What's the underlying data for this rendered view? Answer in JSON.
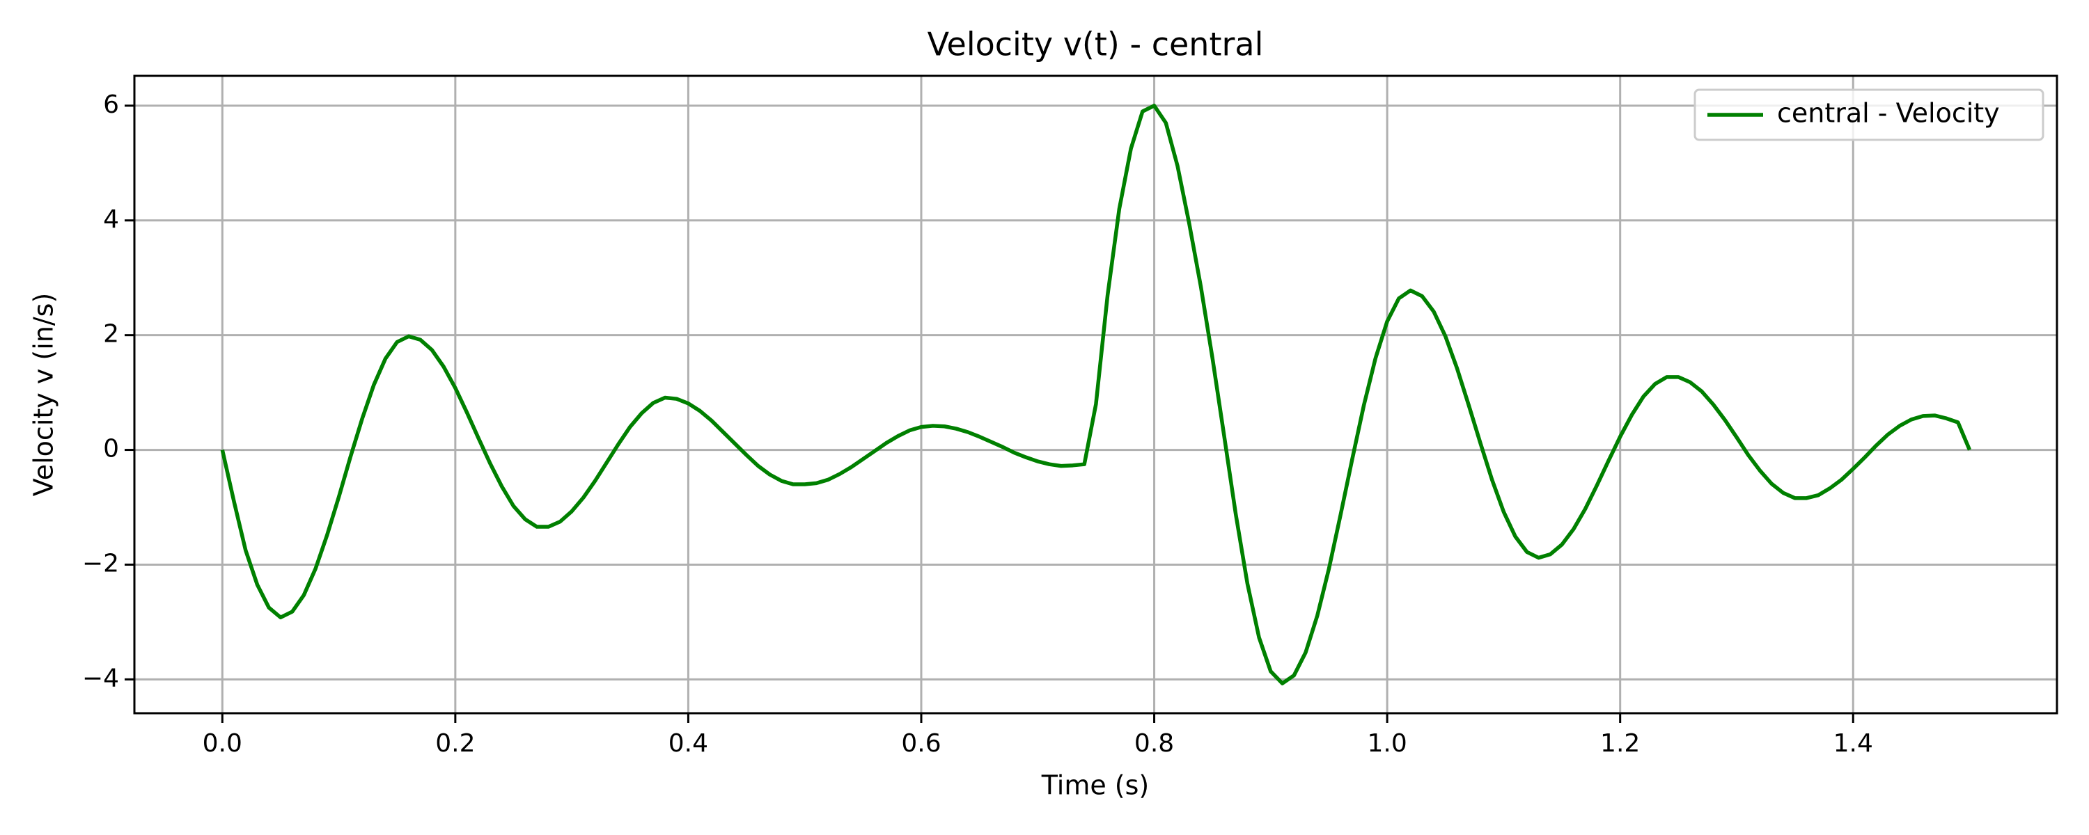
{
  "chart_data": {
    "type": "line",
    "title": "Velocity v(t) - central",
    "x_label": "Time (s)",
    "y_label": "Velocity v (in/s)",
    "x": [
      0,
      0.01,
      0.02,
      0.03,
      0.04,
      0.05,
      0.06,
      0.07,
      0.08,
      0.09,
      0.1,
      0.11,
      0.12,
      0.13,
      0.14,
      0.15,
      0.16,
      0.17,
      0.18,
      0.19,
      0.2,
      0.21,
      0.22,
      0.23,
      0.24,
      0.25,
      0.26,
      0.27,
      0.28,
      0.29,
      0.3,
      0.31,
      0.32,
      0.33,
      0.34,
      0.35,
      0.36,
      0.37,
      0.38,
      0.39,
      0.4,
      0.41,
      0.42,
      0.43,
      0.44,
      0.45,
      0.46,
      0.47,
      0.48,
      0.49,
      0.5,
      0.51,
      0.52,
      0.53,
      0.54,
      0.55,
      0.56,
      0.57,
      0.58,
      0.59,
      0.6,
      0.61,
      0.62,
      0.63,
      0.64,
      0.65,
      0.66,
      0.67,
      0.68,
      0.69,
      0.7,
      0.71,
      0.72,
      0.73,
      0.74,
      0.75,
      0.76,
      0.77,
      0.78,
      0.79,
      0.8,
      0.81,
      0.82,
      0.83,
      0.84,
      0.85,
      0.86,
      0.87,
      0.88,
      0.89,
      0.9,
      0.91,
      0.92,
      0.93,
      0.94,
      0.95,
      0.96,
      0.97,
      0.98,
      0.99,
      1.0,
      1.01,
      1.02,
      1.03,
      1.04,
      1.05,
      1.06,
      1.07,
      1.08,
      1.09,
      1.1,
      1.11,
      1.12,
      1.13,
      1.14,
      1.15,
      1.16,
      1.17,
      1.18,
      1.19,
      1.2,
      1.21,
      1.22,
      1.23,
      1.24,
      1.25,
      1.26,
      1.27,
      1.28,
      1.29,
      1.3,
      1.31,
      1.32,
      1.33,
      1.34,
      1.35,
      1.36,
      1.37,
      1.38,
      1.39,
      1.4,
      1.41,
      1.42,
      1.43,
      1.44,
      1.45,
      1.46,
      1.47,
      1.48,
      1.49,
      1.5
    ],
    "series": [
      {
        "name": "central - Velocity",
        "color": "#008000",
        "values": [
          0,
          -0.9,
          -1.75,
          -2.35,
          -2.75,
          -2.92,
          -2.82,
          -2.53,
          -2.07,
          -1.48,
          -0.82,
          -0.12,
          0.54,
          1.13,
          1.59,
          1.88,
          1.98,
          1.92,
          1.74,
          1.45,
          1.08,
          0.65,
          0.2,
          -0.24,
          -0.64,
          -0.98,
          -1.21,
          -1.34,
          -1.34,
          -1.25,
          -1.07,
          -0.83,
          -0.54,
          -0.22,
          0.1,
          0.4,
          0.64,
          0.82,
          0.91,
          0.89,
          0.81,
          0.68,
          0.51,
          0.31,
          0.11,
          -0.09,
          -0.28,
          -0.43,
          -0.54,
          -0.6,
          -0.6,
          -0.58,
          -0.52,
          -0.42,
          -0.3,
          -0.16,
          -0.02,
          0.12,
          0.24,
          0.34,
          0.4,
          0.42,
          0.41,
          0.37,
          0.31,
          0.23,
          0.14,
          0.05,
          -0.05,
          -0.13,
          -0.2,
          -0.25,
          -0.28,
          -0.27,
          -0.25,
          0.8,
          2.7,
          4.2,
          5.25,
          5.9,
          6.0,
          5.7,
          4.95,
          3.95,
          2.85,
          1.6,
          0.25,
          -1.12,
          -2.33,
          -3.27,
          -3.86,
          -4.07,
          -3.93,
          -3.53,
          -2.89,
          -2.07,
          -1.13,
          -0.16,
          0.78,
          1.6,
          2.24,
          2.64,
          2.78,
          2.68,
          2.41,
          1.98,
          1.42,
          0.78,
          0.12,
          -0.52,
          -1.08,
          -1.51,
          -1.78,
          -1.88,
          -1.82,
          -1.65,
          -1.38,
          -1.03,
          -0.62,
          -0.19,
          0.23,
          0.61,
          0.93,
          1.15,
          1.27,
          1.27,
          1.18,
          1.02,
          0.79,
          0.52,
          0.22,
          -0.09,
          -0.36,
          -0.59,
          -0.75,
          -0.84,
          -0.84,
          -0.79,
          -0.67,
          -0.52,
          -0.33,
          -0.13,
          0.08,
          0.27,
          0.42,
          0.53,
          0.59,
          0.6,
          0.55,
          0.48,
          0
        ]
      }
    ],
    "xlim": [
      -0.0755,
      1.575
    ],
    "xticks": [
      {
        "value": 0,
        "label": "0.0"
      },
      0.2,
      0.4,
      0.6,
      0.8,
      {
        "value": 1,
        "label": "1.0"
      },
      1.2,
      1.4
    ],
    "ylim": [
      -4.59,
      6.52
    ],
    "yticks": [
      {
        "value": -4,
        "label": "−4"
      },
      {
        "value": -2,
        "label": "−2"
      },
      0,
      2,
      4,
      6
    ],
    "grid": true,
    "legend": "upper right"
  }
}
